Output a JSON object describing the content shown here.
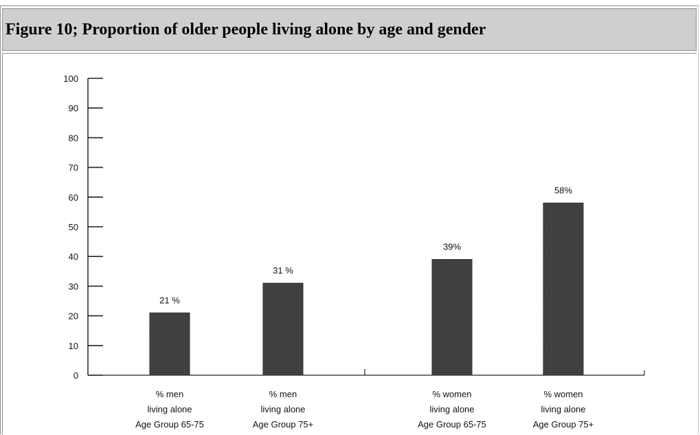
{
  "title": "Figure 10; Proportion of older people living alone by age and gender",
  "chart_data": {
    "type": "bar",
    "categories": [
      [
        "% men",
        "living alone",
        "Age Group 65-75"
      ],
      [
        "% men",
        "living alone",
        "Age Group 75+"
      ],
      [
        "% women",
        "living alone",
        "Age Group 65-75"
      ],
      [
        "% women",
        "living alone",
        "Age Group 75+"
      ]
    ],
    "values": [
      21,
      31,
      39,
      58
    ],
    "data_labels": [
      "21 %",
      "31 %",
      "39%",
      "58%"
    ],
    "y_ticks": [
      0,
      10,
      20,
      30,
      40,
      50,
      60,
      70,
      80,
      90,
      100
    ],
    "ylim": [
      0,
      100
    ],
    "grid": false,
    "bar_color": "#3d3d3d"
  }
}
